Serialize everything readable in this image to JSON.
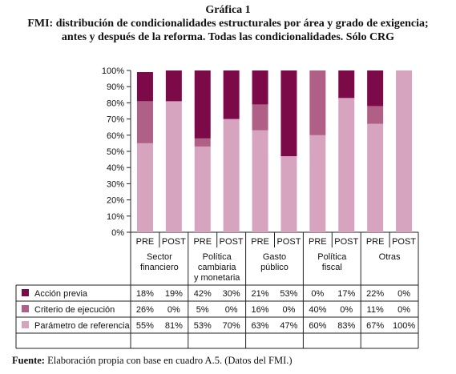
{
  "title": "Gráfica 1",
  "subtitle_line1": "FMI: distribución de condicionalidades estructurales por área y grado de exigencia;",
  "subtitle_line2": "antes y después de la reforma. Todas las condicionalidades. Sólo CRG",
  "source_label": "Fuente:",
  "source_text": "Elaboración propia con base en cuadro A.5. (Datos del FMI.)",
  "colors": {
    "accion": "#7d0a48",
    "criterio": "#b06087",
    "parametro": "#d6a4bf"
  },
  "chart_data": {
    "type": "bar",
    "stacked": true,
    "ylim": [
      0,
      100
    ],
    "y_ticks": [
      "0%",
      "10%",
      "20%",
      "30%",
      "40%",
      "50%",
      "60%",
      "70%",
      "80%",
      "90%",
      "100%"
    ],
    "categories": [
      "PRE",
      "POST",
      "PRE",
      "POST",
      "PRE",
      "POST",
      "PRE",
      "POST",
      "PRE",
      "POST"
    ],
    "groups": [
      {
        "label_lines": [
          "Sector",
          "financiero"
        ]
      },
      {
        "label_lines": [
          "Política",
          "cambiaria",
          "y monetaria"
        ]
      },
      {
        "label_lines": [
          "Gasto",
          "público"
        ]
      },
      {
        "label_lines": [
          "Política",
          "fiscal"
        ]
      },
      {
        "label_lines": [
          "Otras"
        ]
      }
    ],
    "series": [
      {
        "name": "Acción previa",
        "color": "#7d0a48",
        "values": [
          18,
          19,
          42,
          30,
          21,
          53,
          0,
          17,
          22,
          0
        ],
        "labels": [
          "18%",
          "19%",
          "42%",
          "30%",
          "21%",
          "53%",
          "0%",
          "17%",
          "22%",
          "0%"
        ]
      },
      {
        "name": "Criterio de ejecución",
        "color": "#b06087",
        "values": [
          26,
          0,
          5,
          0,
          16,
          0,
          40,
          0,
          11,
          0
        ],
        "labels": [
          "26%",
          "0%",
          "5%",
          "0%",
          "16%",
          "0%",
          "40%",
          "0%",
          "11%",
          "0%"
        ]
      },
      {
        "name": "Parámetro de referencia",
        "color": "#d6a4bf",
        "values": [
          55,
          81,
          53,
          70,
          63,
          47,
          60,
          83,
          67,
          100
        ],
        "labels": [
          "55%",
          "81%",
          "53%",
          "70%",
          "63%",
          "47%",
          "60%",
          "83%",
          "67%",
          "100%"
        ]
      }
    ]
  }
}
